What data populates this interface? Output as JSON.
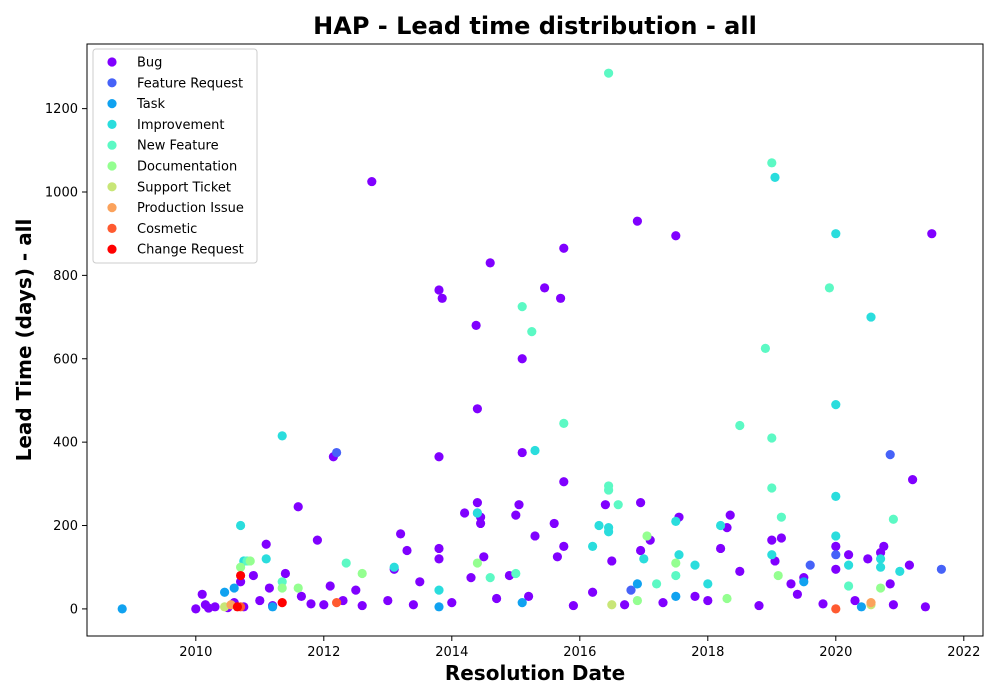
{
  "chart_data": {
    "type": "scatter",
    "title": "HAP - Lead time distribution - all",
    "xlabel": "Resolution Date",
    "ylabel": "Lead Time (days) - all",
    "xlim": [
      2008.3,
      2022.3
    ],
    "ylim": [
      -65,
      1355
    ],
    "xticks": [
      2010,
      2012,
      2014,
      2016,
      2018,
      2020,
      2022
    ],
    "yticks": [
      0,
      200,
      400,
      600,
      800,
      1000,
      1200
    ],
    "grid": false,
    "legend_position": "upper-left",
    "series": [
      {
        "name": "Bug",
        "color": "#8000ff",
        "points": [
          [
            2010.0,
            0
          ],
          [
            2010.1,
            35
          ],
          [
            2010.15,
            10
          ],
          [
            2010.2,
            2
          ],
          [
            2010.6,
            15
          ],
          [
            2010.7,
            65
          ],
          [
            2010.75,
            5
          ],
          [
            2010.9,
            80
          ],
          [
            2011.0,
            20
          ],
          [
            2011.1,
            155
          ],
          [
            2011.15,
            50
          ],
          [
            2011.4,
            85
          ],
          [
            2011.6,
            245
          ],
          [
            2011.65,
            30
          ],
          [
            2011.9,
            165
          ],
          [
            2012.0,
            10
          ],
          [
            2012.1,
            55
          ],
          [
            2012.15,
            365
          ],
          [
            2012.3,
            20
          ],
          [
            2012.5,
            45
          ],
          [
            2012.75,
            1025
          ],
          [
            2013.1,
            95
          ],
          [
            2013.2,
            180
          ],
          [
            2013.3,
            140
          ],
          [
            2013.5,
            65
          ],
          [
            2013.8,
            765
          ],
          [
            2013.85,
            745
          ],
          [
            2013.8,
            365
          ],
          [
            2013.8,
            145
          ],
          [
            2013.8,
            120
          ],
          [
            2014.2,
            230
          ],
          [
            2014.3,
            75
          ],
          [
            2014.38,
            680
          ],
          [
            2014.4,
            480
          ],
          [
            2014.4,
            255
          ],
          [
            2014.45,
            220
          ],
          [
            2014.45,
            205
          ],
          [
            2014.5,
            125
          ],
          [
            2014.6,
            830
          ],
          [
            2014.9,
            80
          ],
          [
            2015.0,
            225
          ],
          [
            2015.05,
            250
          ],
          [
            2015.1,
            600
          ],
          [
            2015.1,
            375
          ],
          [
            2015.3,
            175
          ],
          [
            2015.45,
            770
          ],
          [
            2015.6,
            205
          ],
          [
            2015.65,
            125
          ],
          [
            2015.7,
            745
          ],
          [
            2015.75,
            865
          ],
          [
            2015.75,
            305
          ],
          [
            2015.75,
            150
          ],
          [
            2016.4,
            250
          ],
          [
            2016.5,
            115
          ],
          [
            2016.9,
            930
          ],
          [
            2016.95,
            255
          ],
          [
            2016.95,
            140
          ],
          [
            2017.1,
            165
          ],
          [
            2017.5,
            895
          ],
          [
            2017.55,
            220
          ],
          [
            2018.2,
            145
          ],
          [
            2018.3,
            195
          ],
          [
            2018.35,
            225
          ],
          [
            2018.5,
            90
          ],
          [
            2019.0,
            165
          ],
          [
            2019.05,
            115
          ],
          [
            2019.15,
            170
          ],
          [
            2019.3,
            60
          ],
          [
            2019.5,
            75
          ],
          [
            2020.0,
            150
          ],
          [
            2020.0,
            95
          ],
          [
            2020.2,
            130
          ],
          [
            2020.5,
            120
          ],
          [
            2020.7,
            135
          ],
          [
            2020.75,
            150
          ],
          [
            2020.85,
            60
          ],
          [
            2021.2,
            310
          ],
          [
            2021.15,
            105
          ],
          [
            2021.5,
            900
          ],
          [
            2021.4,
            5
          ],
          [
            2010.3,
            5
          ],
          [
            2010.5,
            3
          ],
          [
            2011.2,
            8
          ],
          [
            2011.8,
            12
          ],
          [
            2012.6,
            8
          ],
          [
            2013.0,
            20
          ],
          [
            2013.4,
            10
          ],
          [
            2014.0,
            15
          ],
          [
            2014.7,
            25
          ],
          [
            2015.2,
            30
          ],
          [
            2015.9,
            8
          ],
          [
            2016.2,
            40
          ],
          [
            2016.7,
            10
          ],
          [
            2017.3,
            15
          ],
          [
            2017.8,
            30
          ],
          [
            2018.0,
            20
          ],
          [
            2018.8,
            8
          ],
          [
            2019.4,
            35
          ],
          [
            2019.8,
            12
          ],
          [
            2020.3,
            20
          ],
          [
            2020.9,
            10
          ]
        ]
      },
      {
        "name": "Feature Request",
        "color": "#4662f8",
        "points": [
          [
            2012.2,
            375
          ],
          [
            2019.6,
            105
          ],
          [
            2020.0,
            130
          ],
          [
            2020.85,
            370
          ],
          [
            2021.65,
            95
          ],
          [
            2014.4,
            230
          ],
          [
            2016.8,
            45
          ]
        ]
      },
      {
        "name": "Task",
        "color": "#10a2f0",
        "points": [
          [
            2008.85,
            0
          ],
          [
            2010.45,
            40
          ],
          [
            2010.6,
            50
          ],
          [
            2011.2,
            5
          ],
          [
            2013.8,
            5
          ],
          [
            2016.9,
            60
          ],
          [
            2017.5,
            30
          ],
          [
            2019.5,
            65
          ],
          [
            2020.4,
            5
          ],
          [
            2015.1,
            15
          ]
        ]
      },
      {
        "name": "Improvement",
        "color": "#2adddd",
        "points": [
          [
            2010.7,
            200
          ],
          [
            2010.75,
            115
          ],
          [
            2011.1,
            120
          ],
          [
            2011.35,
            415
          ],
          [
            2013.1,
            100
          ],
          [
            2014.4,
            230
          ],
          [
            2015.3,
            380
          ],
          [
            2016.3,
            200
          ],
          [
            2016.45,
            195
          ],
          [
            2016.45,
            185
          ],
          [
            2017.0,
            120
          ],
          [
            2017.5,
            210
          ],
          [
            2017.55,
            130
          ],
          [
            2017.8,
            105
          ],
          [
            2018.2,
            200
          ],
          [
            2019.05,
            1035
          ],
          [
            2020.0,
            900
          ],
          [
            2020.0,
            490
          ],
          [
            2020.0,
            270
          ],
          [
            2020.0,
            175
          ],
          [
            2020.55,
            700
          ],
          [
            2020.7,
            120
          ],
          [
            2020.7,
            100
          ],
          [
            2021.0,
            90
          ],
          [
            2018.0,
            60
          ],
          [
            2019.0,
            130
          ],
          [
            2013.8,
            45
          ],
          [
            2016.2,
            150
          ],
          [
            2020.2,
            105
          ]
        ]
      },
      {
        "name": "New Feature",
        "color": "#5cf9c4",
        "points": [
          [
            2010.8,
            115
          ],
          [
            2011.35,
            65
          ],
          [
            2012.35,
            110
          ],
          [
            2015.1,
            725
          ],
          [
            2015.25,
            665
          ],
          [
            2015.75,
            445
          ],
          [
            2016.45,
            1285
          ],
          [
            2016.45,
            295
          ],
          [
            2016.45,
            285
          ],
          [
            2016.6,
            250
          ],
          [
            2017.5,
            80
          ],
          [
            2018.5,
            440
          ],
          [
            2018.9,
            625
          ],
          [
            2019.0,
            1070
          ],
          [
            2019.0,
            410
          ],
          [
            2019.0,
            290
          ],
          [
            2019.15,
            220
          ],
          [
            2019.9,
            770
          ],
          [
            2020.2,
            55
          ],
          [
            2020.9,
            215
          ],
          [
            2017.2,
            60
          ],
          [
            2014.6,
            75
          ],
          [
            2015.0,
            85
          ]
        ]
      },
      {
        "name": "Documentation",
        "color": "#94ff90",
        "points": [
          [
            2010.7,
            100
          ],
          [
            2010.85,
            115
          ],
          [
            2011.35,
            50
          ],
          [
            2011.6,
            50
          ],
          [
            2012.6,
            85
          ],
          [
            2014.4,
            110
          ],
          [
            2017.05,
            175
          ],
          [
            2017.5,
            110
          ],
          [
            2019.1,
            80
          ],
          [
            2020.7,
            50
          ],
          [
            2016.9,
            20
          ],
          [
            2018.3,
            25
          ]
        ]
      },
      {
        "name": "Support Ticket",
        "color": "#c8e677",
        "points": [
          [
            2010.45,
            5
          ],
          [
            2016.5,
            10
          ],
          [
            2020.55,
            10
          ]
        ]
      },
      {
        "name": "Production Issue",
        "color": "#fba25c",
        "points": [
          [
            2010.55,
            10
          ],
          [
            2020.55,
            15
          ]
        ]
      },
      {
        "name": "Cosmetic",
        "color": "#ff5a30",
        "points": [
          [
            2010.7,
            5
          ],
          [
            2012.2,
            15
          ],
          [
            2020.0,
            0
          ]
        ]
      },
      {
        "name": "Change Request",
        "color": "#ff0000",
        "points": [
          [
            2010.65,
            5
          ],
          [
            2010.7,
            80
          ],
          [
            2011.35,
            15
          ]
        ]
      }
    ]
  }
}
